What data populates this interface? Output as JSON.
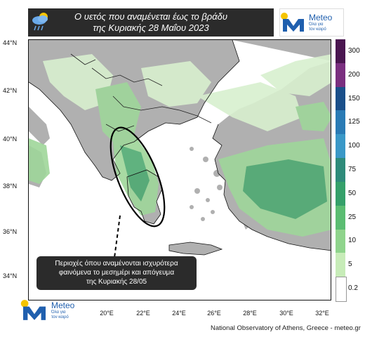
{
  "title": {
    "line1": "Ο υετός που αναμένεται έως το βράδυ",
    "line2": "της Κυριακής 28 Μαΐου 2023",
    "icon": "rain-cloud-icon"
  },
  "logo": {
    "name": "Meteo",
    "subtitle_line1": "Όλα για",
    "subtitle_line2": "τον καιρό",
    "icon": "meteo-m-logo-icon",
    "brand_color": "#1f5fae",
    "sun_color": "#f5c400"
  },
  "axes": {
    "latitudes": [
      "44°N",
      "42°N",
      "40°N",
      "38°N",
      "36°N",
      "34°N"
    ],
    "longitudes": [
      "20°E",
      "22°E",
      "24°E",
      "26°E",
      "28°E",
      "30°E",
      "32°E"
    ]
  },
  "colorbar": {
    "unit_hint": "",
    "levels": [
      "300",
      "200",
      "150",
      "125",
      "100",
      "75",
      "50",
      "25",
      "10",
      "5",
      "0.2"
    ],
    "colors": [
      "#4a1650",
      "#7a2f7f",
      "#1a4f8a",
      "#2a7bb5",
      "#3a98c7",
      "#2e8b7a",
      "#35a06a",
      "#5bbd72",
      "#8fd48c",
      "#c7ecb8",
      "#ffffff"
    ]
  },
  "callout": {
    "line1": "Περιοχές όπου αναμένονται ισχυρότερα",
    "line2": "φαινόμενα το μεσημέρι και απόγευμα",
    "line3": "της Κυριακής 28/05"
  },
  "credit": "National Observatory of Athens, Greece - meteo.gr",
  "map_colors": {
    "land_dry": "#b0b0b0",
    "sea": "#ffffff",
    "rain_light": "#d8f0cf",
    "rain_moderate": "#9fd69a",
    "rain_heavy": "#4faa72"
  }
}
